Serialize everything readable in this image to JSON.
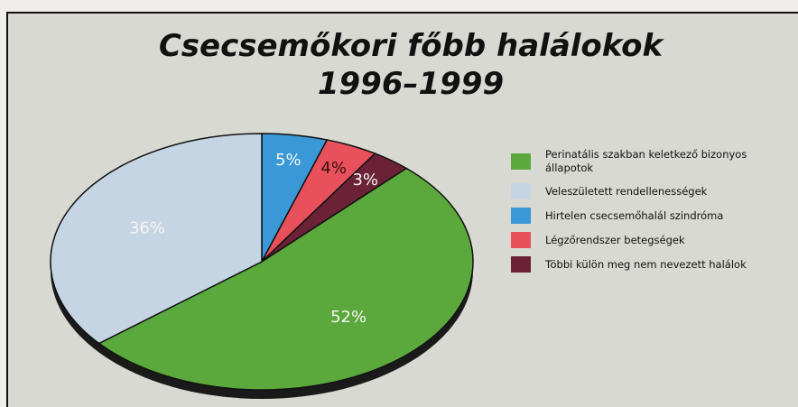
{
  "chart_data": {
    "type": "pie",
    "title": "Csecsemőkori főbb halálokok",
    "subtitle": "1996–1999",
    "categories": [
      "Perinatális szakban keletkező bizonyos állapotok",
      "Veleszületett rendellenességek",
      "Hirtelen csecsemőhalál szindróma",
      "Légzőrendszer betegségek",
      "Többi külön meg nem nevezett halálok"
    ],
    "values": [
      52,
      36,
      5,
      4,
      3
    ],
    "value_labels": [
      "52%",
      "36%",
      "5%",
      "4%",
      "3%"
    ],
    "colors": [
      "#5ba83c",
      "#c6d5e3",
      "#3a98d6",
      "#e8505c",
      "#6b2236"
    ]
  }
}
